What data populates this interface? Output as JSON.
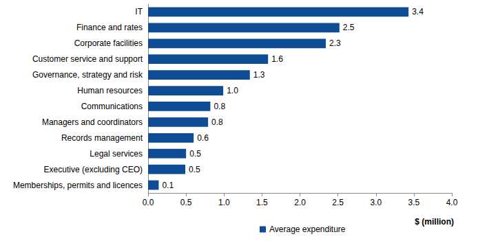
{
  "chart_data": {
    "type": "bar",
    "orientation": "horizontal",
    "x_label": "$ (million)",
    "categories": [
      "IT",
      "Finance and rates",
      "Corporate facilities",
      "Customer service and support",
      "Governance, strategy and risk",
      "Human resources",
      "Communications",
      "Managers and coordinators",
      "Records management",
      "Legal services",
      "Executive (excluding CEO)",
      "Memberships, permits and licences"
    ],
    "series": [
      {
        "name": "Average expenditure",
        "color": "#0e4c96",
        "values": [
          3.43,
          2.52,
          2.34,
          1.58,
          1.34,
          0.99,
          0.82,
          0.79,
          0.6,
          0.5,
          0.49,
          0.14
        ],
        "value_labels": [
          "3.4",
          "2.5",
          "2.3",
          "1.6",
          "1.3",
          "1.0",
          "0.8",
          "0.8",
          "0.6",
          "0.5",
          "0.5",
          "0.1"
        ]
      }
    ],
    "xlim": [
      0,
      4
    ],
    "xticks": [
      {
        "value": 0,
        "label": "0.0"
      },
      {
        "value": 0.5,
        "label": "0.5"
      },
      {
        "value": 1,
        "label": "1.0"
      },
      {
        "value": 1.5,
        "label": "1.5"
      },
      {
        "value": 2,
        "label": "2.0"
      },
      {
        "value": 2.5,
        "label": "2.5"
      },
      {
        "value": 3,
        "label": "3.0"
      },
      {
        "value": 3.5,
        "label": "3.5"
      },
      {
        "value": 4,
        "label": "4.0"
      }
    ],
    "grid": false,
    "data_labels": true,
    "legend": "bottom"
  }
}
